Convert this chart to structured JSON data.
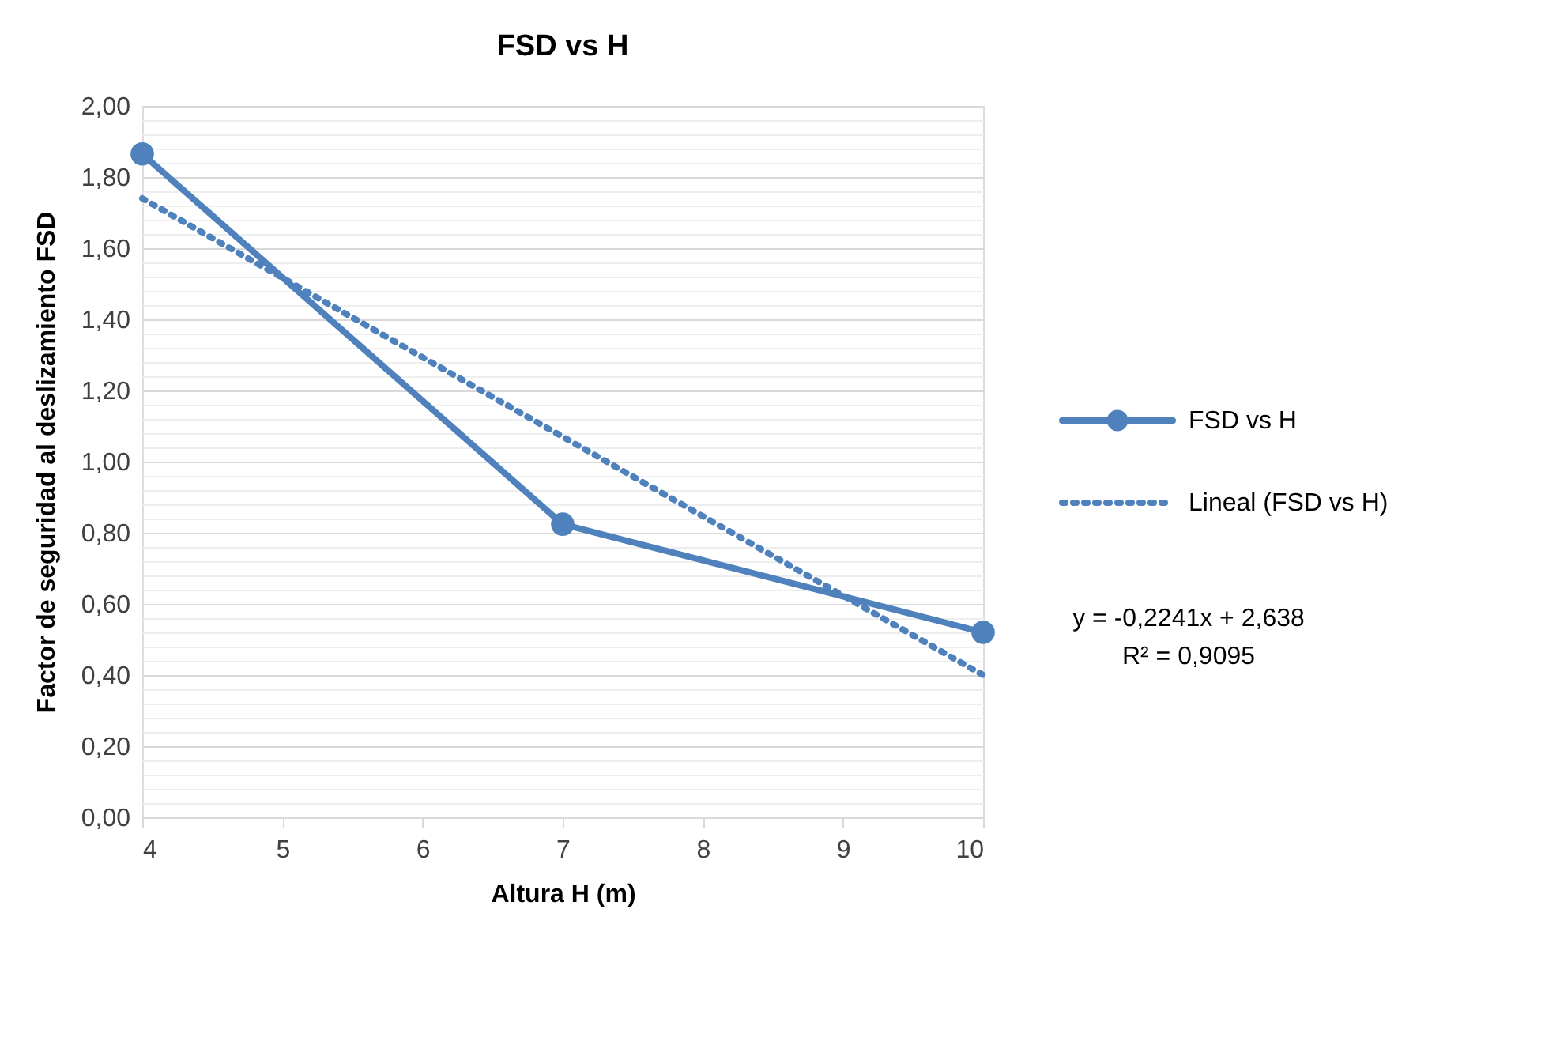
{
  "chart_data": {
    "type": "line",
    "title": "FSD vs H",
    "xlabel": "Altura H (m)",
    "ylabel": "Factor de seguridad al deslizamiento FSD",
    "series": [
      {
        "name": "FSD vs H",
        "color": "#4f81bd",
        "x": [
          4,
          7,
          10
        ],
        "values": [
          1.865,
          0.824,
          0.52
        ],
        "marker": "circle",
        "line_style": "solid"
      },
      {
        "name": "Lineal (FSD vs H)",
        "color": "#4f81bd",
        "x": [
          4,
          10
        ],
        "values": [
          1.74,
          0.4
        ],
        "marker": "none",
        "line_style": "dotted"
      }
    ],
    "xlim": [
      4,
      10
    ],
    "xticks": [
      4,
      5,
      6,
      7,
      8,
      9,
      10
    ],
    "ylim": [
      0,
      2
    ],
    "yticks": [
      {
        "value": 0,
        "label": "0,00"
      },
      {
        "value": 0.04,
        "label": null
      },
      {
        "value": 0.08,
        "label": null
      },
      {
        "value": 0.12,
        "label": null
      },
      {
        "value": 0.16,
        "label": null
      },
      {
        "value": 0.2,
        "label": "0,20"
      },
      {
        "value": 0.24,
        "label": null
      },
      {
        "value": 0.28,
        "label": null
      },
      {
        "value": 0.32,
        "label": null
      },
      {
        "value": 0.36,
        "label": null
      },
      {
        "value": 0.4,
        "label": "0,40"
      },
      {
        "value": 0.44,
        "label": null
      },
      {
        "value": 0.48,
        "label": null
      },
      {
        "value": 0.52,
        "label": null
      },
      {
        "value": 0.56,
        "label": null
      },
      {
        "value": 0.6,
        "label": "0,60"
      },
      {
        "value": 0.64,
        "label": null
      },
      {
        "value": 0.68,
        "label": null
      },
      {
        "value": 0.72,
        "label": null
      },
      {
        "value": 0.76,
        "label": null
      },
      {
        "value": 0.8,
        "label": "0,80"
      },
      {
        "value": 0.84,
        "label": null
      },
      {
        "value": 0.88,
        "label": null
      },
      {
        "value": 0.92,
        "label": null
      },
      {
        "value": 0.96,
        "label": null
      },
      {
        "value": 1.0,
        "label": "1,00"
      },
      {
        "value": 1.04,
        "label": null
      },
      {
        "value": 1.08,
        "label": null
      },
      {
        "value": 1.12,
        "label": null
      },
      {
        "value": 1.16,
        "label": null
      },
      {
        "value": 1.2,
        "label": "1,20"
      },
      {
        "value": 1.24,
        "label": null
      },
      {
        "value": 1.28,
        "label": null
      },
      {
        "value": 1.32,
        "label": null
      },
      {
        "value": 1.36,
        "label": null
      },
      {
        "value": 1.4,
        "label": "1,40"
      },
      {
        "value": 1.44,
        "label": null
      },
      {
        "value": 1.48,
        "label": null
      },
      {
        "value": 1.52,
        "label": null
      },
      {
        "value": 1.56,
        "label": null
      },
      {
        "value": 1.6,
        "label": "1,60"
      },
      {
        "value": 1.64,
        "label": null
      },
      {
        "value": 1.68,
        "label": null
      },
      {
        "value": 1.72,
        "label": null
      },
      {
        "value": 1.76,
        "label": null
      },
      {
        "value": 1.8,
        "label": "1,80"
      },
      {
        "value": 1.84,
        "label": null
      },
      {
        "value": 1.88,
        "label": null
      },
      {
        "value": 1.92,
        "label": null
      },
      {
        "value": 1.96,
        "label": null
      },
      {
        "value": 2.0,
        "label": "2,00"
      }
    ],
    "grid": "y",
    "legend": "right",
    "annotations": [
      "y = -0,2241x + 2,638",
      "R² = 0,9095"
    ]
  }
}
